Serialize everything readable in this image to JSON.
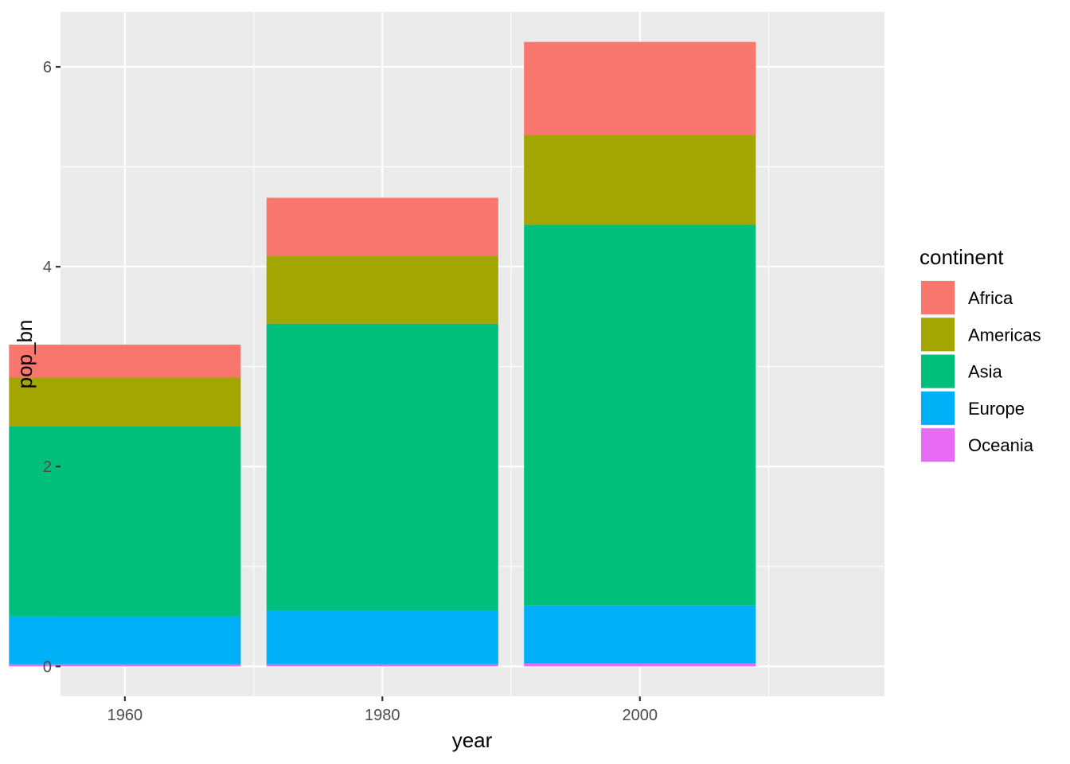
{
  "chart_data": {
    "type": "bar",
    "stacked": true,
    "xlabel": "year",
    "ylabel": "pop_bn",
    "x": [
      1960,
      1980,
      2000
    ],
    "bar_width_years": 18,
    "xlim": [
      1955,
      2019
    ],
    "ylim": [
      -0.3,
      6.55
    ],
    "x_ticks": [
      1960,
      1980,
      2000
    ],
    "x_minor_ticks": [
      1970,
      1990,
      2010
    ],
    "y_ticks": [
      0,
      2,
      4,
      6
    ],
    "y_minor_ticks": [
      1,
      3,
      5
    ],
    "grid": true,
    "legend": {
      "title": "continent",
      "position": "right"
    },
    "stack_order_bottom_to_top": [
      "Oceania",
      "Europe",
      "Asia",
      "Americas",
      "Africa"
    ],
    "series": [
      {
        "name": "Africa",
        "color": "#F8766D",
        "values": [
          0.33,
          0.58,
          0.93
        ]
      },
      {
        "name": "Americas",
        "color": "#A3A500",
        "values": [
          0.49,
          0.68,
          0.9
        ]
      },
      {
        "name": "Asia",
        "color": "#00BF7D",
        "values": [
          1.9,
          2.87,
          3.81
        ]
      },
      {
        "name": "Europe",
        "color": "#00B0F6",
        "values": [
          0.48,
          0.54,
          0.58
        ]
      },
      {
        "name": "Oceania",
        "color": "#E76BF3",
        "values": [
          0.02,
          0.02,
          0.03
        ]
      }
    ]
  }
}
